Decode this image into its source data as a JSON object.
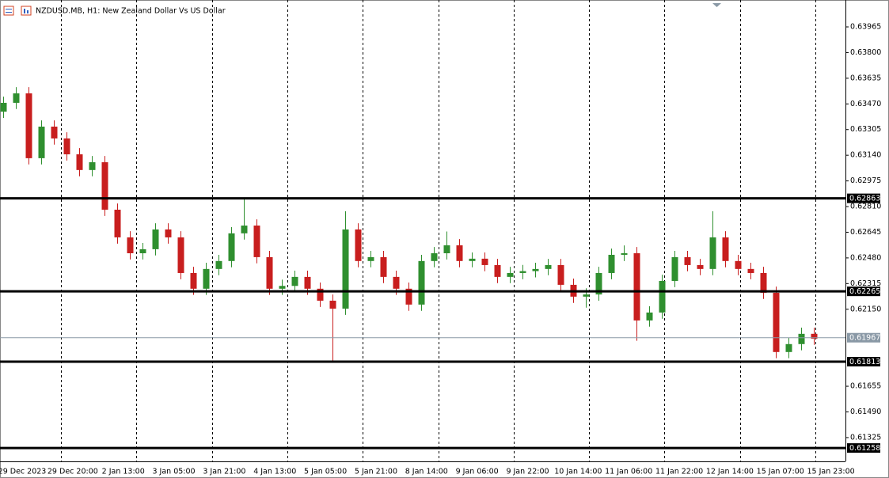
{
  "chart_data": {
    "type": "candlestick",
    "title": "NZDUSD.MB, H1:  New Zealand Dollar Vs US Dollar",
    "bull_color": "#2f8f2f",
    "bear_color": "#c81e1e",
    "ylim": [
      0.61172,
      0.64138
    ],
    "yticks": [
      {
        "value": 0.63965,
        "label": "0.63965"
      },
      {
        "value": 0.638,
        "label": "0.63800"
      },
      {
        "value": 0.63635,
        "label": "0.63635"
      },
      {
        "value": 0.6347,
        "label": "0.63470"
      },
      {
        "value": 0.63305,
        "label": "0.63305"
      },
      {
        "value": 0.6314,
        "label": "0.63140"
      },
      {
        "value": 0.62975,
        "label": "0.62975"
      },
      {
        "value": 0.6281,
        "label": "0.62810"
      },
      {
        "value": 0.62645,
        "label": "0.62645"
      },
      {
        "value": 0.6248,
        "label": "0.62480"
      },
      {
        "value": 0.62315,
        "label": "0.62315"
      },
      {
        "value": 0.6215,
        "label": "0.62150"
      },
      {
        "value": 0.61655,
        "label": "0.61655"
      },
      {
        "value": 0.6149,
        "label": "0.61490"
      },
      {
        "value": 0.61325,
        "label": "0.61325"
      }
    ],
    "x_labels": [
      "29 Dec 2023",
      "29 Dec 20:00",
      "2 Jan 13:00",
      "3 Jan 05:00",
      "3 Jan 21:00",
      "4 Jan 13:00",
      "5 Jan 05:00",
      "5 Jan 21:00",
      "8 Jan 14:00",
      "9 Jan 06:00",
      "9 Jan 22:00",
      "10 Jan 14:00",
      "11 Jan 06:00",
      "11 Jan 22:00",
      "12 Jan 14:00",
      "15 Jan 07:00",
      "15 Jan 23:00"
    ],
    "levels": [
      {
        "value": 0.62863,
        "label": "0.62863",
        "color": "#000000"
      },
      {
        "value": 0.62265,
        "label": "0.62265",
        "color": "#000000"
      },
      {
        "value": 0.61967,
        "label": "0.61967",
        "color": "#8a99a6"
      },
      {
        "value": 0.61813,
        "label": "0.61813",
        "color": "#000000"
      },
      {
        "value": 0.61258,
        "label": "0.61258",
        "color": "#000000"
      }
    ],
    "open": [
      0.6342,
      0.63477,
      0.63538,
      0.63121,
      0.63324,
      0.63248,
      0.63146,
      0.63045,
      0.63095,
      0.6279,
      0.62612,
      0.6251,
      0.62536,
      0.62663,
      0.62612,
      0.62383,
      0.62282,
      0.62409,
      0.6246,
      0.62638,
      0.62688,
      0.62485,
      0.62282,
      0.623,
      0.62358,
      0.62282,
      0.62205,
      0.62154,
      0.62663,
      0.6246,
      0.62485,
      0.62358,
      0.62282,
      0.6218,
      0.6246,
      0.6251,
      0.62561,
      0.6246,
      0.62475,
      0.62434,
      0.62358,
      0.62383,
      0.62395,
      0.62409,
      0.62434,
      0.62307,
      0.62231,
      0.62245,
      0.62383,
      0.625,
      0.6251,
      0.62078,
      0.62129,
      0.62332,
      0.62485,
      0.62434,
      0.62409,
      0.62612,
      0.6246,
      0.62409,
      0.62383,
      0.62256,
      0.61875,
      0.61926,
      0.61992
    ],
    "high": [
      0.63517,
      0.63578,
      0.63578,
      0.63364,
      0.63364,
      0.63288,
      0.63186,
      0.63135,
      0.63135,
      0.6283,
      0.62652,
      0.62576,
      0.62703,
      0.62703,
      0.62652,
      0.62423,
      0.62449,
      0.625,
      0.62678,
      0.62858,
      0.62728,
      0.62525,
      0.6234,
      0.62398,
      0.62398,
      0.62322,
      0.62245,
      0.6278,
      0.62703,
      0.62525,
      0.62525,
      0.62398,
      0.62322,
      0.625,
      0.6255,
      0.6265,
      0.62601,
      0.62515,
      0.62515,
      0.62474,
      0.62423,
      0.62435,
      0.62449,
      0.62474,
      0.62474,
      0.62347,
      0.62285,
      0.62423,
      0.6254,
      0.6256,
      0.6255,
      0.62169,
      0.62372,
      0.62525,
      0.62525,
      0.62474,
      0.6278,
      0.62652,
      0.625,
      0.62449,
      0.62423,
      0.62296,
      0.61966,
      0.62032,
      0.62032
    ],
    "low": [
      0.6338,
      0.63437,
      0.63081,
      0.63081,
      0.63208,
      0.63106,
      0.63005,
      0.63005,
      0.6275,
      0.62572,
      0.6247,
      0.6247,
      0.62496,
      0.62572,
      0.62343,
      0.62242,
      0.62242,
      0.62369,
      0.6242,
      0.62598,
      0.62445,
      0.62242,
      0.62242,
      0.6226,
      0.62242,
      0.62165,
      0.61809,
      0.62114,
      0.6242,
      0.6242,
      0.62318,
      0.62242,
      0.6214,
      0.6214,
      0.6242,
      0.6247,
      0.6242,
      0.6242,
      0.62394,
      0.62318,
      0.62318,
      0.62343,
      0.62355,
      0.62369,
      0.62267,
      0.62191,
      0.6216,
      0.62205,
      0.62343,
      0.6246,
      0.61947,
      0.62038,
      0.62089,
      0.62292,
      0.62394,
      0.62369,
      0.62369,
      0.6242,
      0.62369,
      0.62343,
      0.62216,
      0.61835,
      0.61835,
      0.61886,
      0.61921
    ],
    "close": [
      0.63477,
      0.63538,
      0.63121,
      0.63324,
      0.63248,
      0.63146,
      0.63045,
      0.63095,
      0.6279,
      0.62612,
      0.6251,
      0.62536,
      0.62663,
      0.62612,
      0.62383,
      0.62282,
      0.62409,
      0.6246,
      0.62638,
      0.62688,
      0.62485,
      0.62282,
      0.623,
      0.62358,
      0.62282,
      0.62205,
      0.62154,
      0.62663,
      0.6246,
      0.62485,
      0.62358,
      0.62282,
      0.6218,
      0.6246,
      0.6251,
      0.62561,
      0.6246,
      0.62475,
      0.62434,
      0.62358,
      0.62383,
      0.62395,
      0.62409,
      0.62434,
      0.62307,
      0.62231,
      0.62245,
      0.62383,
      0.625,
      0.6251,
      0.62078,
      0.62129,
      0.62332,
      0.62485,
      0.62434,
      0.62409,
      0.62612,
      0.6246,
      0.62409,
      0.62383,
      0.62256,
      0.61875,
      0.61926,
      0.61992,
      0.61961
    ]
  }
}
